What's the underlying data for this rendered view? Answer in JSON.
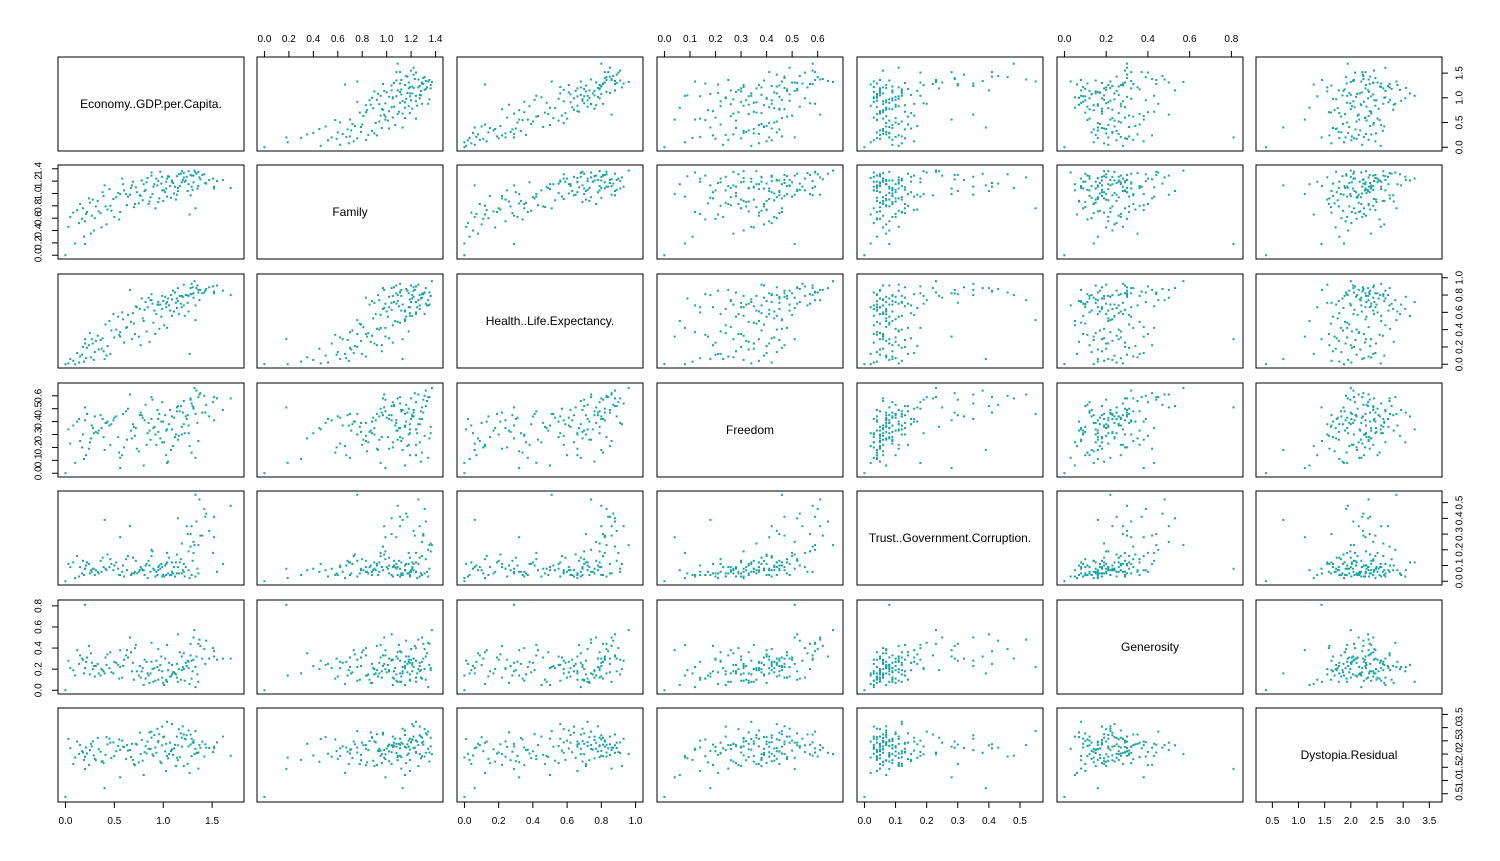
{
  "chart_data": {
    "type": "scatter",
    "layout": "scatterplot-matrix",
    "point_color": "#17A3A3",
    "variables": [
      {
        "name": "Economy..GDP.per.Capita.",
        "ticks": [
          "0.0",
          "0.5",
          "1.0",
          "1.5"
        ],
        "range": [
          0.0,
          1.75
        ]
      },
      {
        "name": "Family",
        "ticks": [
          "0.0",
          "0.2",
          "0.4",
          "0.6",
          "0.8",
          "1.0",
          "1.2",
          "1.4"
        ],
        "range": [
          0.0,
          1.4
        ]
      },
      {
        "name": "Health..Life.Expectancy.",
        "ticks": [
          "0.0",
          "0.2",
          "0.4",
          "0.6",
          "0.8",
          "1.0"
        ],
        "range": [
          0.0,
          1.0
        ]
      },
      {
        "name": "Freedom",
        "ticks": [
          "0.0",
          "0.1",
          "0.2",
          "0.3",
          "0.4",
          "0.5",
          "0.6"
        ],
        "range": [
          0.0,
          0.67
        ]
      },
      {
        "name": "Trust..Government.Corruption.",
        "ticks": [
          "0.0",
          "0.1",
          "0.2",
          "0.3",
          "0.4",
          "0.5"
        ],
        "range": [
          0.0,
          0.55
        ]
      },
      {
        "name": "Generosity",
        "ticks": [
          "0.0",
          "0.2",
          "0.4",
          "0.6",
          "0.8"
        ],
        "range": [
          0.0,
          0.82
        ]
      },
      {
        "name": "Dystopia.Residual",
        "ticks": [
          "0.5",
          "1.0",
          "1.5",
          "2.0",
          "2.5",
          "3.0",
          "3.5"
        ],
        "range": [
          0.33,
          3.6
        ]
      }
    ],
    "axes": {
      "top_columns": [
        1,
        3,
        5
      ],
      "bottom_columns": [
        0,
        2,
        4,
        6
      ],
      "left_rows": [
        1,
        3,
        5
      ],
      "right_rows": [
        0,
        2,
        4,
        6
      ]
    },
    "n_observations": 157,
    "observations": [
      [
        1.44,
        1.16,
        0.87,
        0.53,
        0.43,
        0.47,
        2.24
      ],
      [
        1.52,
        1.11,
        0.84,
        0.59,
        0.41,
        0.37,
        2.22
      ],
      [
        1.4,
        1.3,
        0.82,
        0.47,
        0.29,
        0.3,
        2.47
      ],
      [
        1.38,
        1.23,
        0.86,
        0.62,
        0.29,
        0.42,
        2.24
      ],
      [
        1.51,
        1.24,
        0.9,
        0.55,
        0.18,
        0.4,
        2.08
      ],
      [
        1.34,
        1.32,
        0.88,
        0.64,
        0.38,
        0.32,
        2.05
      ],
      [
        1.42,
        1.31,
        0.83,
        0.6,
        0.46,
        0.39,
        1.91
      ],
      [
        1.31,
        1.29,
        0.77,
        0.51,
        0.25,
        0.5,
        2.43
      ],
      [
        1.47,
        1.22,
        0.89,
        0.44,
        0.32,
        0.3,
        2.23
      ],
      [
        1.36,
        1.35,
        0.83,
        0.59,
        0.23,
        0.44,
        2.06
      ],
      [
        1.23,
        1.21,
        0.8,
        0.44,
        0.09,
        0.26,
        2.56
      ],
      [
        1.28,
        1.3,
        0.81,
        0.57,
        0.3,
        0.44,
        2.36
      ],
      [
        1.52,
        1.08,
        0.82,
        0.41,
        0.28,
        0.32,
        2.28
      ],
      [
        1.37,
        1.26,
        0.74,
        0.61,
        0.52,
        0.48,
        2.34
      ],
      [
        1.19,
        1.36,
        0.79,
        0.36,
        0.24,
        0.19,
        2.62
      ],
      [
        1.29,
        1.11,
        0.93,
        0.54,
        0.35,
        0.28,
        2.58
      ],
      [
        1.31,
        1.18,
        0.82,
        0.5,
        0.18,
        0.29,
        2.51
      ],
      [
        1.43,
        1.17,
        0.85,
        0.47,
        0.41,
        0.25,
        2.37
      ],
      [
        1.55,
        1.2,
        0.91,
        0.58,
        0.06,
        0.29,
        2.44
      ],
      [
        1.24,
        1.27,
        0.8,
        0.42,
        0.35,
        0.23,
        2.71
      ],
      [
        1.69,
        1.09,
        0.8,
        0.58,
        0.48,
        0.3,
        1.94
      ],
      [
        1.14,
        1.28,
        0.76,
        0.48,
        0.05,
        0.12,
        2.66
      ],
      [
        1.3,
        1.06,
        0.89,
        0.52,
        0.13,
        0.18,
        2.43
      ],
      [
        1.26,
        1.36,
        0.79,
        0.31,
        0.19,
        0.21,
        2.29
      ],
      [
        1.35,
        1.08,
        0.91,
        0.39,
        0.08,
        0.15,
        2.04
      ],
      [
        1.2,
        1.22,
        0.78,
        0.47,
        0.07,
        0.22,
        3.05
      ],
      [
        1.12,
        1.11,
        0.83,
        0.28,
        0.03,
        0.16,
        2.35
      ],
      [
        1.28,
        0.97,
        0.88,
        0.58,
        0.22,
        0.33,
        2.74
      ],
      [
        1.04,
        1.24,
        0.72,
        0.34,
        0.12,
        0.08,
        3.22
      ],
      [
        1.36,
        1.12,
        0.86,
        0.25,
        0.05,
        0.08,
        1.45
      ],
      [
        1.18,
        1.32,
        0.7,
        0.52,
        0.14,
        0.1,
        2.78
      ],
      [
        1.09,
        1.19,
        0.75,
        0.34,
        0.06,
        0.15,
        2.17
      ],
      [
        1.29,
        1.29,
        0.81,
        0.16,
        0.04,
        0.11,
        1.92
      ],
      [
        1.02,
        1.02,
        0.78,
        0.45,
        0.1,
        0.3,
        2.1
      ],
      [
        1.15,
        1.09,
        0.73,
        0.26,
        0.09,
        0.08,
        1.77
      ],
      [
        0.94,
        1.13,
        0.69,
        0.49,
        0.04,
        0.22,
        2.96
      ],
      [
        1.33,
        1.34,
        0.68,
        0.12,
        0.03,
        0.03,
        2.2
      ],
      [
        1.21,
        1.26,
        0.92,
        0.38,
        0.11,
        0.2,
        1.55
      ],
      [
        0.95,
        1.2,
        0.72,
        0.42,
        0.07,
        0.39,
        2.45
      ],
      [
        1.06,
        1.27,
        0.68,
        0.38,
        0.15,
        0.26,
        2.0
      ],
      [
        0.99,
        1.05,
        0.79,
        0.55,
        0.09,
        0.12,
        2.33
      ],
      [
        1.19,
        1.18,
        0.66,
        0.3,
        0.05,
        0.32,
        2.28
      ],
      [
        0.88,
        1.29,
        0.81,
        0.42,
        0.16,
        0.27,
        2.62
      ],
      [
        1.1,
        1.17,
        0.85,
        0.21,
        0.05,
        0.17,
        1.97
      ],
      [
        1.03,
        1.08,
        0.7,
        0.33,
        0.11,
        0.09,
        2.39
      ],
      [
        0.78,
        1.21,
        0.76,
        0.45,
        0.08,
        0.18,
        2.53
      ],
      [
        1.14,
        0.98,
        0.65,
        0.51,
        0.17,
        0.25,
        1.86
      ],
      [
        0.91,
        1.15,
        0.62,
        0.36,
        0.07,
        0.21,
        2.72
      ],
      [
        1.25,
        1.04,
        0.71,
        0.45,
        0.3,
        0.28,
        1.63
      ],
      [
        1.08,
        0.93,
        0.8,
        0.18,
        0.04,
        0.13,
        2.12
      ],
      [
        0.84,
        1.25,
        0.66,
        0.31,
        0.02,
        0.16,
        2.47
      ],
      [
        0.97,
        1.35,
        0.69,
        0.27,
        0.08,
        0.24,
        1.72
      ],
      [
        1.17,
        1.12,
        0.79,
        0.48,
        0.12,
        0.36,
        1.88
      ],
      [
        0.82,
        1.06,
        0.72,
        0.53,
        0.1,
        0.11,
        2.3
      ],
      [
        1.0,
        0.88,
        0.73,
        0.4,
        0.04,
        0.07,
        2.64
      ],
      [
        0.93,
        1.24,
        0.58,
        0.22,
        0.06,
        0.28,
        2.05
      ],
      [
        1.11,
        1.0,
        0.61,
        0.43,
        0.09,
        0.17,
        2.21
      ],
      [
        0.72,
        1.1,
        0.67,
        0.35,
        0.13,
        0.43,
        2.39
      ],
      [
        1.05,
        1.28,
        0.76,
        0.09,
        0.05,
        0.19,
        1.84
      ],
      [
        0.89,
        0.99,
        0.7,
        0.57,
        0.19,
        0.2,
        1.99
      ],
      [
        1.22,
        1.19,
        0.56,
        0.31,
        0.03,
        0.09,
        2.58
      ],
      [
        0.76,
        0.97,
        0.64,
        0.45,
        0.07,
        0.23,
        2.81
      ],
      [
        0.98,
        1.16,
        0.55,
        0.4,
        0.11,
        0.32,
        1.66
      ],
      [
        0.87,
        0.94,
        0.74,
        0.26,
        0.06,
        0.16,
        2.19
      ],
      [
        1.07,
        1.12,
        0.62,
        0.49,
        0.04,
        0.13,
        2.43
      ],
      [
        0.69,
        1.19,
        0.59,
        0.38,
        0.15,
        0.26,
        1.78
      ],
      [
        0.95,
        0.86,
        0.69,
        0.32,
        0.09,
        0.1,
        2.49
      ],
      [
        0.81,
        1.04,
        0.63,
        0.41,
        0.04,
        0.29,
        2.07
      ],
      [
        1.13,
        0.9,
        0.71,
        0.3,
        0.12,
        0.15,
        1.55
      ],
      [
        0.59,
        1.15,
        0.52,
        0.46,
        0.1,
        0.23,
        2.28
      ],
      [
        0.73,
        1.02,
        0.66,
        0.19,
        0.05,
        0.18,
        2.36
      ],
      [
        0.9,
        1.11,
        0.48,
        0.35,
        0.08,
        0.08,
        1.93
      ],
      [
        0.64,
        0.95,
        0.57,
        0.5,
        0.16,
        0.31,
        2.13
      ],
      [
        1.01,
        1.05,
        0.45,
        0.24,
        0.03,
        0.05,
        2.66
      ],
      [
        0.79,
        0.89,
        0.53,
        0.43,
        0.07,
        0.21,
        1.75
      ],
      [
        0.58,
        1.24,
        0.6,
        0.14,
        0.06,
        0.12,
        2.51
      ],
      [
        0.85,
        0.83,
        0.77,
        0.39,
        0.13,
        0.14,
        2.2
      ],
      [
        0.67,
        1.09,
        0.49,
        0.33,
        0.04,
        0.36,
        1.89
      ],
      [
        0.96,
        0.92,
        0.41,
        0.46,
        0.1,
        0.19,
        2.75
      ],
      [
        0.54,
        1.01,
        0.55,
        0.28,
        0.08,
        0.24,
        2.3
      ],
      [
        0.7,
        0.78,
        0.47,
        0.36,
        0.05,
        0.1,
        1.62
      ],
      [
        0.83,
        1.18,
        0.38,
        0.22,
        0.11,
        0.27,
        2.02
      ],
      [
        0.49,
        0.91,
        0.58,
        0.41,
        0.07,
        0.16,
        2.44
      ],
      [
        0.62,
        0.99,
        0.42,
        0.48,
        0.14,
        0.33,
        1.81
      ],
      [
        0.92,
        0.76,
        0.35,
        0.3,
        0.03,
        0.09,
        2.25
      ],
      [
        0.45,
        1.07,
        0.5,
        0.37,
        0.09,
        0.21,
        2.58
      ],
      [
        0.75,
        0.84,
        0.32,
        0.17,
        0.06,
        0.14,
        1.69
      ],
      [
        0.52,
        0.94,
        0.4,
        0.44,
        0.12,
        0.26,
        2.11
      ],
      [
        0.68,
        1.13,
        0.29,
        0.27,
        0.05,
        0.18,
        2.39
      ],
      [
        0.41,
        0.79,
        0.46,
        0.39,
        0.08,
        0.31,
        1.97
      ],
      [
        0.86,
        0.87,
        0.26,
        0.33,
        0.1,
        0.07,
        2.82
      ],
      [
        0.56,
        0.7,
        0.37,
        0.12,
        0.04,
        0.22,
        2.16
      ],
      [
        0.38,
        1.02,
        0.3,
        0.42,
        0.15,
        0.19,
        1.73
      ],
      [
        0.63,
        0.81,
        0.43,
        0.26,
        0.07,
        0.38,
        2.34
      ],
      [
        0.77,
        0.96,
        0.22,
        0.47,
        0.09,
        0.12,
        2.0
      ],
      [
        0.33,
        0.88,
        0.33,
        0.31,
        0.06,
        0.25,
        2.61
      ],
      [
        0.47,
        0.72,
        0.39,
        0.38,
        0.11,
        0.17,
        1.85
      ],
      [
        0.6,
        1.05,
        0.25,
        0.2,
        0.03,
        0.29,
        2.27
      ],
      [
        0.36,
        0.68,
        0.28,
        0.45,
        0.13,
        0.14,
        2.09
      ],
      [
        0.71,
        0.83,
        0.35,
        0.29,
        0.06,
        0.4,
        1.58
      ],
      [
        0.28,
        0.9,
        0.24,
        0.35,
        0.08,
        0.2,
        2.48
      ],
      [
        0.5,
        0.62,
        0.31,
        0.43,
        0.1,
        0.27,
        1.93
      ],
      [
        0.25,
        0.85,
        0.36,
        0.24,
        0.05,
        0.15,
        2.15
      ],
      [
        0.43,
        0.74,
        0.21,
        0.4,
        0.17,
        0.34,
        2.37
      ],
      [
        0.31,
        0.79,
        0.27,
        0.32,
        0.07,
        0.23,
        1.77
      ],
      [
        0.55,
        0.58,
        0.34,
        0.16,
        0.04,
        0.11,
        2.55
      ],
      [
        0.22,
        0.7,
        0.19,
        0.46,
        0.12,
        0.31,
        2.02
      ],
      [
        0.39,
        0.96,
        0.15,
        0.28,
        0.09,
        0.18,
        1.66
      ],
      [
        0.27,
        0.64,
        0.29,
        0.37,
        0.06,
        0.26,
        2.29
      ],
      [
        0.46,
        0.8,
        0.12,
        0.22,
        0.14,
        0.36,
        2.43
      ],
      [
        0.2,
        0.55,
        0.24,
        0.41,
        0.08,
        0.21,
        1.9
      ],
      [
        0.34,
        0.71,
        0.17,
        0.33,
        0.05,
        0.16,
        2.18
      ],
      [
        0.24,
        0.92,
        0.22,
        0.19,
        0.11,
        0.42,
        1.59
      ],
      [
        0.42,
        0.5,
        0.1,
        0.39,
        0.07,
        0.24,
        2.64
      ],
      [
        0.18,
        0.76,
        0.2,
        0.3,
        0.13,
        0.29,
        2.06
      ],
      [
        0.3,
        0.6,
        0.14,
        0.44,
        0.04,
        0.13,
        1.82
      ],
      [
        0.15,
        0.83,
        0.09,
        0.25,
        0.09,
        0.33,
        2.34
      ],
      [
        0.37,
        0.45,
        0.18,
        0.35,
        0.06,
        0.2,
        1.71
      ],
      [
        0.21,
        0.67,
        0.07,
        0.14,
        0.1,
        0.27,
        2.25
      ],
      [
        0.12,
        0.73,
        0.13,
        0.4,
        0.16,
        0.38,
        2.47
      ],
      [
        0.29,
        0.4,
        0.05,
        0.31,
        0.08,
        0.23,
        1.95
      ],
      [
        0.17,
        0.59,
        0.11,
        0.2,
        0.05,
        0.3,
        2.11
      ],
      [
        0.08,
        0.69,
        0.04,
        0.37,
        0.12,
        0.19,
        1.63
      ],
      [
        0.26,
        0.35,
        0.08,
        0.27,
        0.07,
        0.35,
        2.39
      ],
      [
        0.14,
        0.52,
        0.02,
        0.42,
        0.03,
        0.25,
        2.01
      ],
      [
        0.05,
        0.62,
        0.06,
        0.23,
        0.09,
        0.21,
        2.22
      ],
      [
        0.19,
        0.3,
        0.03,
        0.11,
        0.04,
        0.16,
        1.78
      ],
      [
        0.03,
        0.46,
        0.01,
        0.34,
        0.11,
        0.28,
        2.57
      ],
      [
        0.1,
        0.19,
        0.0,
        0.08,
        0.02,
        0.14,
        1.87
      ],
      [
        0.0,
        0.0,
        0.0,
        0.0,
        0.0,
        0.0,
        0.38
      ],
      [
        1.61,
        1.22,
        0.85,
        0.49,
        0.11,
        0.3,
        2.66
      ],
      [
        1.21,
        1.33,
        0.68,
        0.56,
        0.06,
        0.35,
        2.74
      ],
      [
        1.26,
        1.15,
        0.61,
        0.37,
        0.07,
        0.27,
        2.89
      ],
      [
        0.99,
        1.27,
        0.64,
        0.24,
        0.03,
        0.18,
        3.04
      ],
      [
        1.16,
        1.31,
        0.58,
        0.29,
        0.05,
        0.2,
        2.94
      ],
      [
        1.09,
        1.21,
        0.56,
        0.44,
        0.12,
        0.24,
        3.13
      ],
      [
        0.88,
        1.34,
        0.74,
        0.59,
        0.2,
        0.45,
        2.85
      ],
      [
        1.03,
        1.19,
        0.66,
        0.14,
        0.04,
        0.1,
        1.36
      ],
      [
        0.8,
        1.15,
        0.5,
        0.06,
        0.07,
        0.05,
        1.21
      ],
      [
        0.56,
        0.99,
        0.32,
        0.04,
        0.28,
        0.38,
        1.12
      ],
      [
        0.4,
        1.13,
        0.06,
        0.18,
        0.39,
        0.16,
        0.71
      ],
      [
        0.2,
        0.18,
        0.29,
        0.51,
        0.08,
        0.81,
        1.44
      ],
      [
        1.04,
        0.95,
        0.42,
        0.08,
        0.18,
        0.43,
        1.93
      ],
      [
        1.32,
        1.37,
        0.96,
        0.66,
        0.23,
        0.57,
        2.0
      ],
      [
        1.15,
        1.04,
        0.88,
        0.52,
        0.4,
        0.53,
        2.33
      ],
      [
        0.66,
        0.98,
        0.86,
        0.61,
        0.35,
        0.5,
        2.15
      ],
      [
        1.27,
        0.66,
        0.12,
        0.21,
        0.02,
        0.06,
        1.29
      ],
      [
        1.33,
        0.76,
        0.51,
        0.46,
        0.55,
        0.22,
        2.87
      ]
    ]
  }
}
